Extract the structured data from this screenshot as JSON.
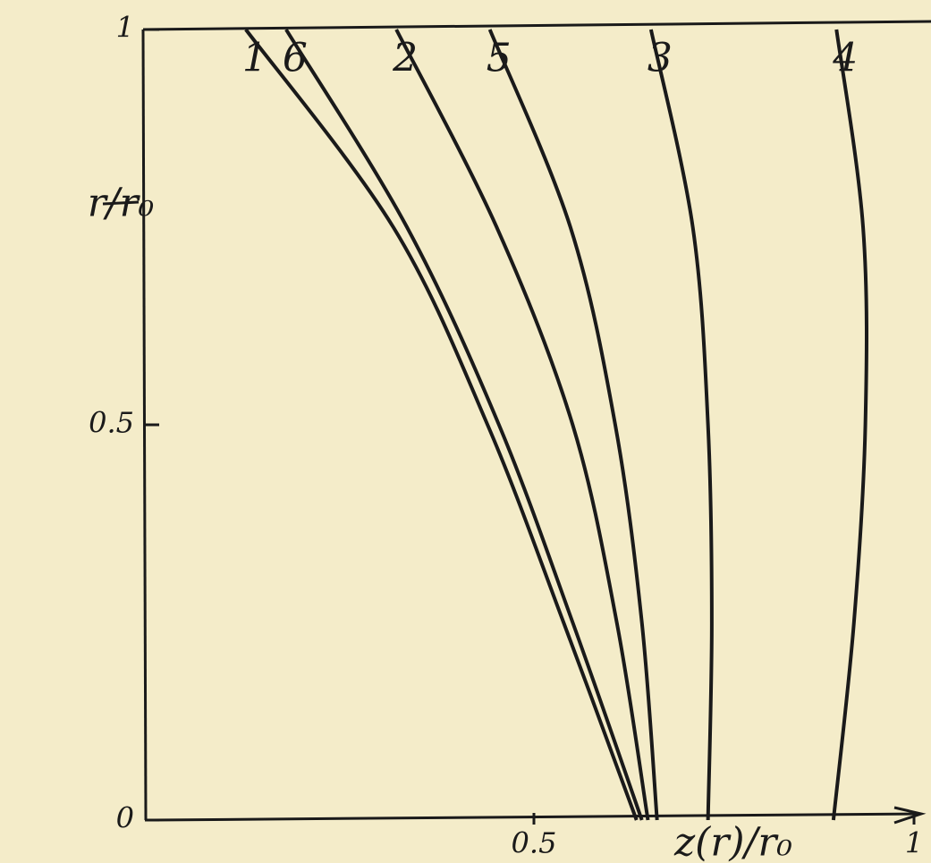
{
  "chart_data": {
    "type": "line",
    "x_label": "z(r)/r₀",
    "y_label": "r/r₀",
    "xlim": [
      0,
      1
    ],
    "ylim": [
      0,
      1
    ],
    "xticks": [
      0.5,
      1
    ],
    "yticks": [
      0,
      0.5,
      1
    ],
    "values": [
      0,
      0.25,
      0.5,
      0.75,
      1
    ],
    "series": [
      {
        "name": "1",
        "color": "#1a1a1a",
        "x": [
          0.635,
          0.539,
          0.439,
          0.315,
          0.121
        ]
      },
      {
        "name": "6",
        "color": "#1a1a1a",
        "x": [
          0.642,
          0.551,
          0.454,
          0.333,
          0.174
        ]
      },
      {
        "name": "2",
        "color": "#1a1a1a",
        "x": [
          0.65,
          0.609,
          0.551,
          0.451,
          0.319
        ]
      },
      {
        "name": "5",
        "color": "#1a1a1a",
        "x": [
          0.662,
          0.642,
          0.607,
          0.548,
          0.442
        ]
      },
      {
        "name": "3",
        "color": "#1a1a1a",
        "x": [
          0.729,
          0.734,
          0.729,
          0.709,
          0.654
        ]
      },
      {
        "name": "4",
        "color": "#1a1a1a",
        "x": [
          0.894,
          0.921,
          0.936,
          0.933,
          0.898
        ]
      }
    ]
  }
}
